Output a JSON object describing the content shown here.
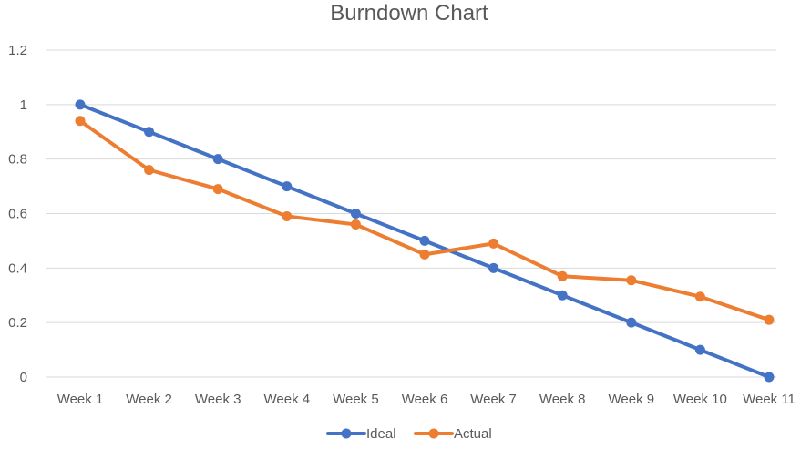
{
  "chart_data": {
    "type": "line",
    "title": "Burndown Chart",
    "xlabel": "",
    "ylabel": "",
    "categories": [
      "Week 1",
      "Week 2",
      "Week 3",
      "Week 4",
      "Week 5",
      "Week 6",
      "Week 7",
      "Week 8",
      "Week 9",
      "Week 10",
      "Week 11"
    ],
    "y_ticks": [
      "0",
      "0.2",
      "0.4",
      "0.6",
      "0.8",
      "1",
      "1.2"
    ],
    "ylim": [
      0,
      1.2
    ],
    "grid": true,
    "legend_position": "bottom",
    "series": [
      {
        "name": "Ideal",
        "color": "#4472c4",
        "values": [
          1.0,
          0.9,
          0.8,
          0.7,
          0.6,
          0.5,
          0.4,
          0.3,
          0.2,
          0.1,
          0.0
        ]
      },
      {
        "name": "Actual",
        "color": "#ed7d31",
        "values": [
          0.94,
          0.76,
          0.69,
          0.59,
          0.56,
          0.45,
          0.49,
          0.37,
          0.355,
          0.295,
          0.21
        ]
      }
    ]
  }
}
